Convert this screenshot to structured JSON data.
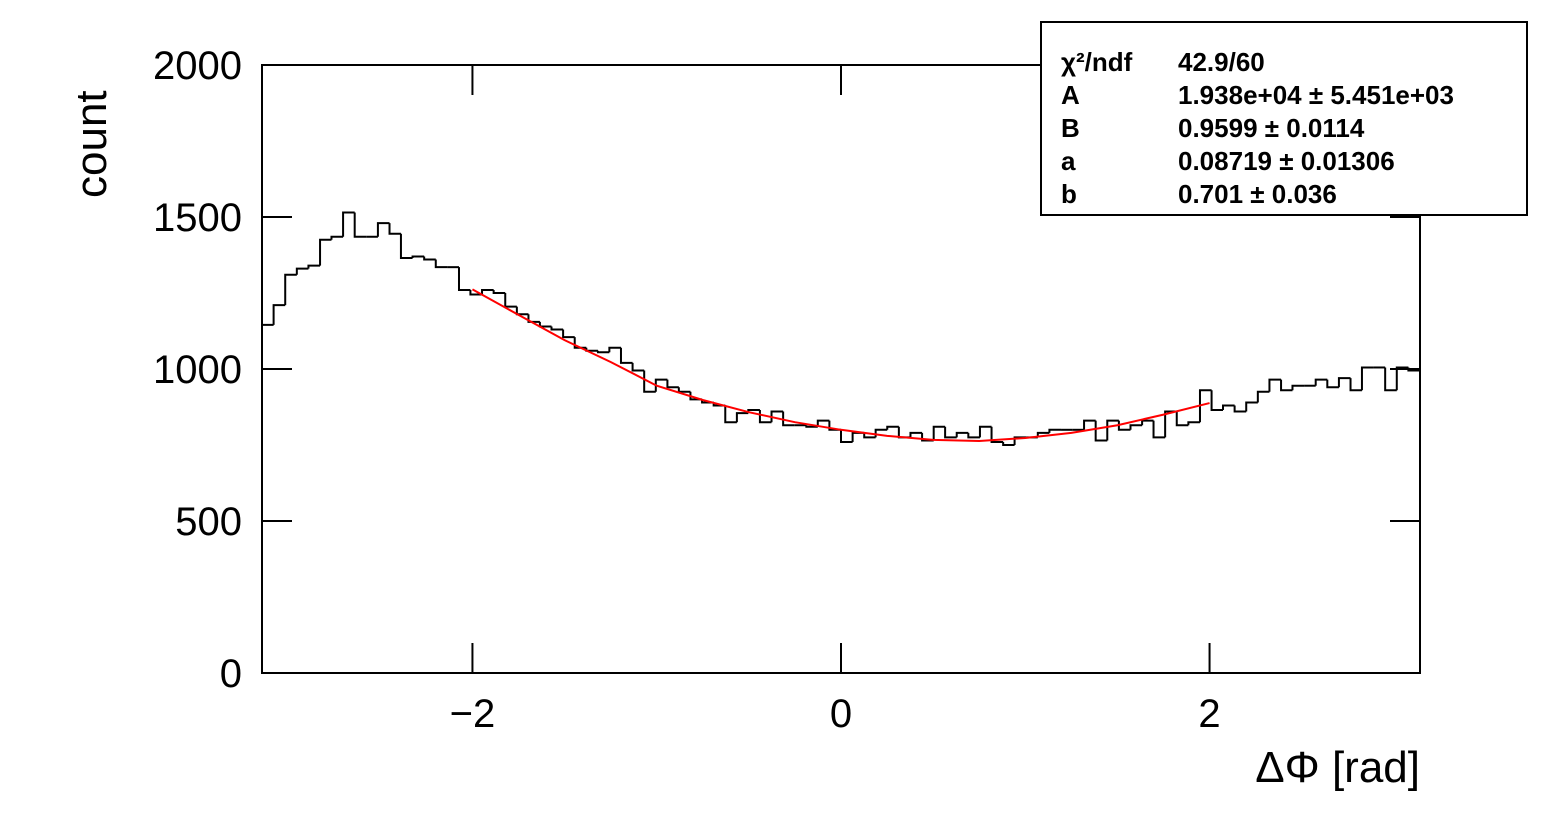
{
  "chart_data": {
    "type": "histogram",
    "x_label": "ΔΦ [rad]",
    "y_label": "count",
    "color": "#000000",
    "bins": [
      -3.142,
      -3.079,
      -3.016,
      -2.953,
      -2.89,
      -2.827,
      -2.765,
      -2.702,
      -2.639,
      -2.576,
      -2.513,
      -2.45,
      -2.388,
      -2.325,
      -2.262,
      -2.199,
      -2.136,
      -2.073,
      -2.011,
      -1.948,
      -1.885,
      -1.822,
      -1.759,
      -1.696,
      -1.634,
      -1.571,
      -1.508,
      -1.445,
      -1.382,
      -1.319,
      -1.257,
      -1.194,
      -1.131,
      -1.068,
      -1.005,
      -0.942,
      -0.88,
      -0.817,
      -0.754,
      -0.691,
      -0.628,
      -0.565,
      -0.503,
      -0.44,
      -0.377,
      -0.314,
      -0.251,
      -0.188,
      -0.126,
      -0.063,
      0,
      0.063,
      0.126,
      0.188,
      0.251,
      0.314,
      0.377,
      0.44,
      0.503,
      0.565,
      0.628,
      0.691,
      0.754,
      0.817,
      0.88,
      0.942,
      1.005,
      1.068,
      1.131,
      1.194,
      1.257,
      1.319,
      1.382,
      1.445,
      1.508,
      1.571,
      1.634,
      1.696,
      1.759,
      1.822,
      1.885,
      1.948,
      2.011,
      2.073,
      2.136,
      2.199,
      2.262,
      2.325,
      2.388,
      2.45,
      2.513,
      2.576,
      2.639,
      2.702,
      2.765,
      2.827,
      2.89,
      2.953,
      3.016,
      3.079,
      3.142
    ],
    "counts": [
      1145,
      1210,
      1310,
      1330,
      1340,
      1425,
      1435,
      1515,
      1435,
      1435,
      1480,
      1445,
      1365,
      1370,
      1360,
      1335,
      1335,
      1260,
      1245,
      1260,
      1250,
      1205,
      1180,
      1155,
      1140,
      1130,
      1105,
      1070,
      1060,
      1055,
      1070,
      1020,
      995,
      925,
      965,
      940,
      925,
      900,
      890,
      880,
      825,
      855,
      865,
      825,
      860,
      815,
      815,
      810,
      830,
      800,
      760,
      790,
      775,
      800,
      810,
      775,
      790,
      765,
      810,
      775,
      790,
      775,
      810,
      760,
      750,
      775,
      775,
      790,
      800,
      800,
      800,
      830,
      765,
      830,
      800,
      815,
      830,
      775,
      860,
      815,
      825,
      930,
      865,
      880,
      860,
      890,
      925,
      965,
      930,
      945,
      945,
      965,
      940,
      970,
      930,
      1005,
      1005,
      930,
      1005,
      995
    ],
    "fit": {
      "color": "#ff0000",
      "x": [
        -2,
        -1.75,
        -1.5,
        -1.25,
        -1,
        -0.75,
        -0.5,
        -0.25,
        0,
        0.25,
        0.5,
        0.75,
        1,
        1.25,
        1.5,
        1.75,
        2
      ],
      "values": [
        1262,
        1178,
        1095,
        1023,
        945,
        898,
        858,
        825,
        800,
        780,
        767,
        763,
        773,
        790,
        815,
        850,
        888
      ]
    },
    "xlim": [
      -3.142,
      3.142
    ],
    "ylim": [
      0,
      2000
    ],
    "xticks": [
      {
        "value": -2,
        "label": "−2"
      },
      0,
      2
    ],
    "yticks": [
      0,
      500,
      1000,
      1500,
      2000
    ],
    "stats": [
      [
        "χ²/ndf",
        "42.9/60"
      ],
      [
        "A",
        "1.938e+04 ± 5.451e+03"
      ],
      [
        "B",
        "0.9599 ± 0.0114"
      ],
      [
        "a",
        "0.08719 ± 0.01306"
      ],
      [
        "b",
        "0.701 ± 0.036"
      ]
    ]
  }
}
